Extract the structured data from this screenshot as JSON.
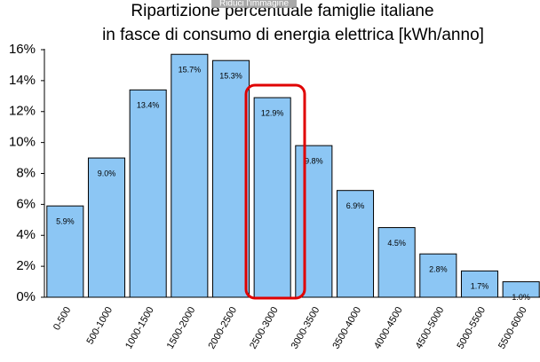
{
  "overlay": "Riduci l'immagine",
  "chart_data": {
    "type": "bar",
    "title": [
      "Ripartizione percentuale famiglie italiane",
      "in fasce di consumo di energia elettrica [kWh/anno]"
    ],
    "categories": [
      "0-500",
      "500-1000",
      "1000-1500",
      "1500-2000",
      "2000-2500",
      "2500-3000",
      "3000-3500",
      "3500-4000",
      "4000-4500",
      "4500-5000",
      "5000-5500",
      "5500-6000"
    ],
    "values": [
      5.9,
      9.0,
      13.4,
      15.7,
      15.3,
      12.9,
      9.8,
      6.9,
      4.5,
      2.8,
      1.7,
      1.0
    ],
    "value_labels": [
      "5.9%",
      "9.0%",
      "13.4%",
      "15.7%",
      "15.3%",
      "12.9%",
      "9.8%",
      "6.9%",
      "4.5%",
      "2.8%",
      "1.7%",
      "1.0%"
    ],
    "color": "#8cc6f4",
    "ylim": [
      0,
      16
    ],
    "yticks": [
      {
        "value": 0,
        "label": "0%"
      },
      {
        "value": 2,
        "label": "2%"
      },
      {
        "value": 4,
        "label": "4%"
      },
      {
        "value": 6,
        "label": "6%"
      },
      {
        "value": 8,
        "label": "8%"
      },
      {
        "value": 10,
        "label": "10%"
      },
      {
        "value": 12,
        "label": "12%"
      },
      {
        "value": 14,
        "label": "14%"
      },
      {
        "value": 16,
        "label": "16%"
      }
    ],
    "grid": false
  }
}
